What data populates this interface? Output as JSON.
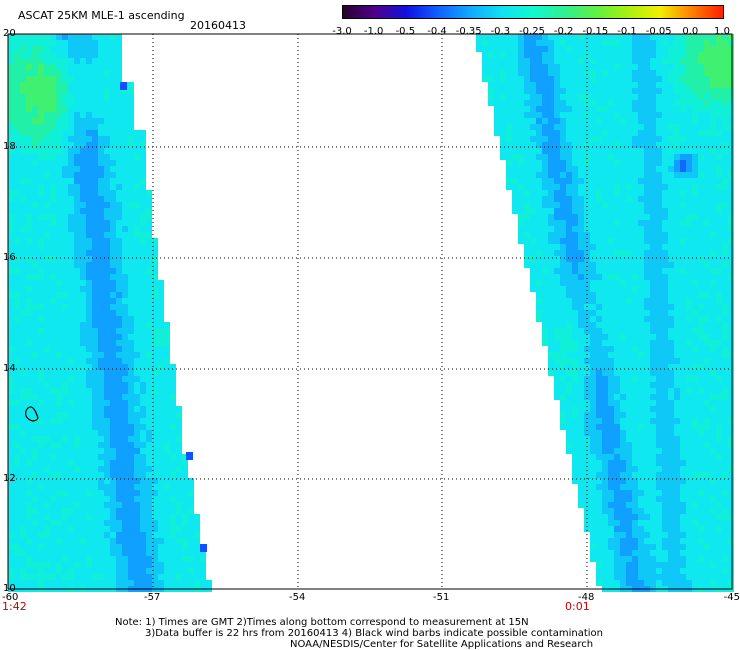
{
  "title": "ASCAT 25KM MLE-1 ascending",
  "date": "20160413",
  "colorbar": {
    "labels": [
      "-3.0",
      "-1.0",
      "-0.5",
      "-0.4",
      "-0.35",
      "-0.3",
      "-0.25",
      "-0.2",
      "-0.15",
      "-0.1",
      "-0.05",
      "0.0",
      "1.0"
    ],
    "colors": [
      "#2a0030",
      "#50008a",
      "#1010e0",
      "#1060ff",
      "#10a8ff",
      "#10e0f0",
      "#10f8d0",
      "#30f090",
      "#60f040",
      "#a8f010",
      "#f0f000",
      "#ff8000",
      "#ff2000"
    ]
  },
  "map": {
    "lon_labels": [
      "-60",
      "-57",
      "-54",
      "-51",
      "-48",
      "-45"
    ],
    "lat_labels": [
      "20",
      "18",
      "16",
      "14",
      "12",
      "10"
    ],
    "time_labels": [
      "1:42",
      "0:01"
    ]
  },
  "notes": [
    "Note: 1) Times are GMT 2)Times along bottom correspond to measurement at 15N",
    "3)Data buffer is 22 hrs from 20160413 4) Black wind barbs indicate possible contamination",
    "NOAA/NESDIS/Center for Satellite Applications and Research"
  ]
}
